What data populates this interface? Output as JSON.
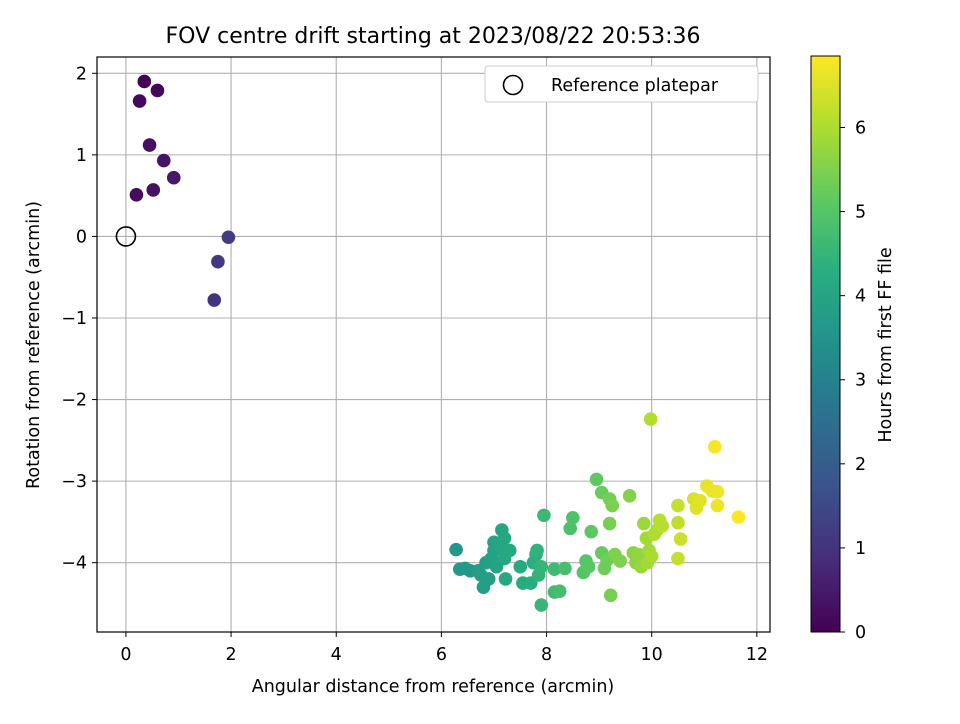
{
  "chart_data": {
    "type": "scatter",
    "title": "FOV centre drift starting at 2023/08/22 20:53:36",
    "xlabel": "Angular distance from reference (arcmin)",
    "ylabel": "Rotation from reference (arcmin)",
    "xlim": [
      -0.55,
      12.25
    ],
    "ylim": [
      -4.85,
      2.2
    ],
    "xticks": [
      0,
      2,
      4,
      6,
      8,
      10,
      12
    ],
    "yticks": [
      -4,
      -3,
      -2,
      -1,
      0,
      1,
      2
    ],
    "grid": true,
    "legend": {
      "placement": "top-right",
      "entries": [
        "Reference platepar"
      ]
    },
    "reference_point": {
      "x": 0,
      "y": 0
    },
    "colorbar": {
      "label": "Hours from first FF file",
      "colormap": "viridis",
      "range": [
        0,
        6.85
      ],
      "ticks": [
        0,
        1,
        2,
        3,
        4,
        5,
        6
      ]
    },
    "points": [
      {
        "x": 0.35,
        "y": 1.9,
        "c": 0.05
      },
      {
        "x": 0.6,
        "y": 1.79,
        "c": 0.1
      },
      {
        "x": 0.26,
        "y": 1.66,
        "c": 0.15
      },
      {
        "x": 0.45,
        "y": 1.12,
        "c": 0.3
      },
      {
        "x": 0.72,
        "y": 0.93,
        "c": 0.4
      },
      {
        "x": 0.91,
        "y": 0.72,
        "c": 0.45
      },
      {
        "x": 0.52,
        "y": 0.57,
        "c": 0.35
      },
      {
        "x": 0.2,
        "y": 0.51,
        "c": 0.2
      },
      {
        "x": 1.95,
        "y": -0.01,
        "c": 1.2
      },
      {
        "x": 1.75,
        "y": -0.31,
        "c": 1.1
      },
      {
        "x": 1.68,
        "y": -0.78,
        "c": 1.0
      },
      {
        "x": 6.28,
        "y": -3.84,
        "c": 3.6
      },
      {
        "x": 6.35,
        "y": -4.08,
        "c": 3.65
      },
      {
        "x": 6.45,
        "y": -4.07,
        "c": 3.7
      },
      {
        "x": 6.55,
        "y": -4.1,
        "c": 3.7
      },
      {
        "x": 6.7,
        "y": -4.1,
        "c": 3.75
      },
      {
        "x": 6.75,
        "y": -4.15,
        "c": 3.8
      },
      {
        "x": 6.8,
        "y": -4.3,
        "c": 3.8
      },
      {
        "x": 6.85,
        "y": -4.0,
        "c": 3.85
      },
      {
        "x": 6.9,
        "y": -4.2,
        "c": 3.85
      },
      {
        "x": 6.95,
        "y": -3.95,
        "c": 3.9
      },
      {
        "x": 7.0,
        "y": -3.75,
        "c": 3.9
      },
      {
        "x": 7.0,
        "y": -3.85,
        "c": 3.95
      },
      {
        "x": 7.05,
        "y": -4.05,
        "c": 3.95
      },
      {
        "x": 7.1,
        "y": -3.8,
        "c": 4.0
      },
      {
        "x": 7.15,
        "y": -3.6,
        "c": 4.0
      },
      {
        "x": 7.2,
        "y": -3.7,
        "c": 4.05
      },
      {
        "x": 7.2,
        "y": -3.95,
        "c": 4.05
      },
      {
        "x": 7.22,
        "y": -4.2,
        "c": 4.1
      },
      {
        "x": 7.3,
        "y": -3.85,
        "c": 4.1
      },
      {
        "x": 7.5,
        "y": -4.05,
        "c": 4.15
      },
      {
        "x": 7.55,
        "y": -4.25,
        "c": 4.2
      },
      {
        "x": 7.7,
        "y": -4.25,
        "c": 4.25
      },
      {
        "x": 7.75,
        "y": -4.0,
        "c": 4.3
      },
      {
        "x": 7.8,
        "y": -3.9,
        "c": 4.35
      },
      {
        "x": 7.82,
        "y": -3.85,
        "c": 4.4
      },
      {
        "x": 7.85,
        "y": -4.15,
        "c": 4.45
      },
      {
        "x": 7.9,
        "y": -4.05,
        "c": 4.5
      },
      {
        "x": 7.9,
        "y": -4.52,
        "c": 4.55
      },
      {
        "x": 7.95,
        "y": -3.42,
        "c": 4.6
      },
      {
        "x": 8.15,
        "y": -4.08,
        "c": 4.65
      },
      {
        "x": 8.15,
        "y": -4.36,
        "c": 4.7
      },
      {
        "x": 8.25,
        "y": -4.35,
        "c": 4.75
      },
      {
        "x": 8.35,
        "y": -4.07,
        "c": 4.8
      },
      {
        "x": 8.45,
        "y": -3.58,
        "c": 4.85
      },
      {
        "x": 8.5,
        "y": -3.45,
        "c": 4.9
      },
      {
        "x": 8.7,
        "y": -4.12,
        "c": 4.95
      },
      {
        "x": 8.75,
        "y": -3.98,
        "c": 5.0
      },
      {
        "x": 8.8,
        "y": -4.05,
        "c": 5.05
      },
      {
        "x": 8.85,
        "y": -3.62,
        "c": 5.1
      },
      {
        "x": 8.95,
        "y": -2.98,
        "c": 5.15
      },
      {
        "x": 9.05,
        "y": -3.88,
        "c": 5.2
      },
      {
        "x": 9.05,
        "y": -3.14,
        "c": 5.25
      },
      {
        "x": 9.1,
        "y": -4.07,
        "c": 5.3
      },
      {
        "x": 9.15,
        "y": -3.97,
        "c": 5.3
      },
      {
        "x": 9.2,
        "y": -3.22,
        "c": 5.35
      },
      {
        "x": 9.2,
        "y": -3.52,
        "c": 5.4
      },
      {
        "x": 9.22,
        "y": -4.4,
        "c": 5.4
      },
      {
        "x": 9.25,
        "y": -3.3,
        "c": 5.45
      },
      {
        "x": 9.3,
        "y": -3.9,
        "c": 5.5
      },
      {
        "x": 9.4,
        "y": -3.98,
        "c": 5.5
      },
      {
        "x": 9.58,
        "y": -3.18,
        "c": 5.55
      },
      {
        "x": 9.65,
        "y": -3.88,
        "c": 5.6
      },
      {
        "x": 9.7,
        "y": -4.0,
        "c": 5.65
      },
      {
        "x": 9.75,
        "y": -3.9,
        "c": 5.7
      },
      {
        "x": 9.8,
        "y": -4.05,
        "c": 5.75
      },
      {
        "x": 9.85,
        "y": -3.52,
        "c": 5.8
      },
      {
        "x": 9.9,
        "y": -3.7,
        "c": 5.85
      },
      {
        "x": 9.92,
        "y": -4.0,
        "c": 5.85
      },
      {
        "x": 9.95,
        "y": -3.85,
        "c": 5.9
      },
      {
        "x": 10.0,
        "y": -3.92,
        "c": 5.95
      },
      {
        "x": 10.05,
        "y": -3.65,
        "c": 6.0
      },
      {
        "x": 10.1,
        "y": -3.6,
        "c": 6.0
      },
      {
        "x": 9.98,
        "y": -2.24,
        "c": 6.05
      },
      {
        "x": 10.15,
        "y": -3.48,
        "c": 6.1
      },
      {
        "x": 10.2,
        "y": -3.55,
        "c": 6.1
      },
      {
        "x": 10.5,
        "y": -3.51,
        "c": 6.2
      },
      {
        "x": 10.5,
        "y": -3.3,
        "c": 6.25
      },
      {
        "x": 10.5,
        "y": -3.95,
        "c": 6.25
      },
      {
        "x": 10.55,
        "y": -3.71,
        "c": 6.3
      },
      {
        "x": 10.8,
        "y": -3.22,
        "c": 6.45
      },
      {
        "x": 10.85,
        "y": -3.33,
        "c": 6.5
      },
      {
        "x": 10.92,
        "y": -3.24,
        "c": 6.55
      },
      {
        "x": 11.05,
        "y": -3.06,
        "c": 6.6
      },
      {
        "x": 11.15,
        "y": -3.12,
        "c": 6.65
      },
      {
        "x": 11.25,
        "y": -3.13,
        "c": 6.7
      },
      {
        "x": 11.25,
        "y": -3.3,
        "c": 6.7
      },
      {
        "x": 11.2,
        "y": -2.58,
        "c": 6.8
      },
      {
        "x": 11.65,
        "y": -3.44,
        "c": 6.85
      }
    ]
  }
}
